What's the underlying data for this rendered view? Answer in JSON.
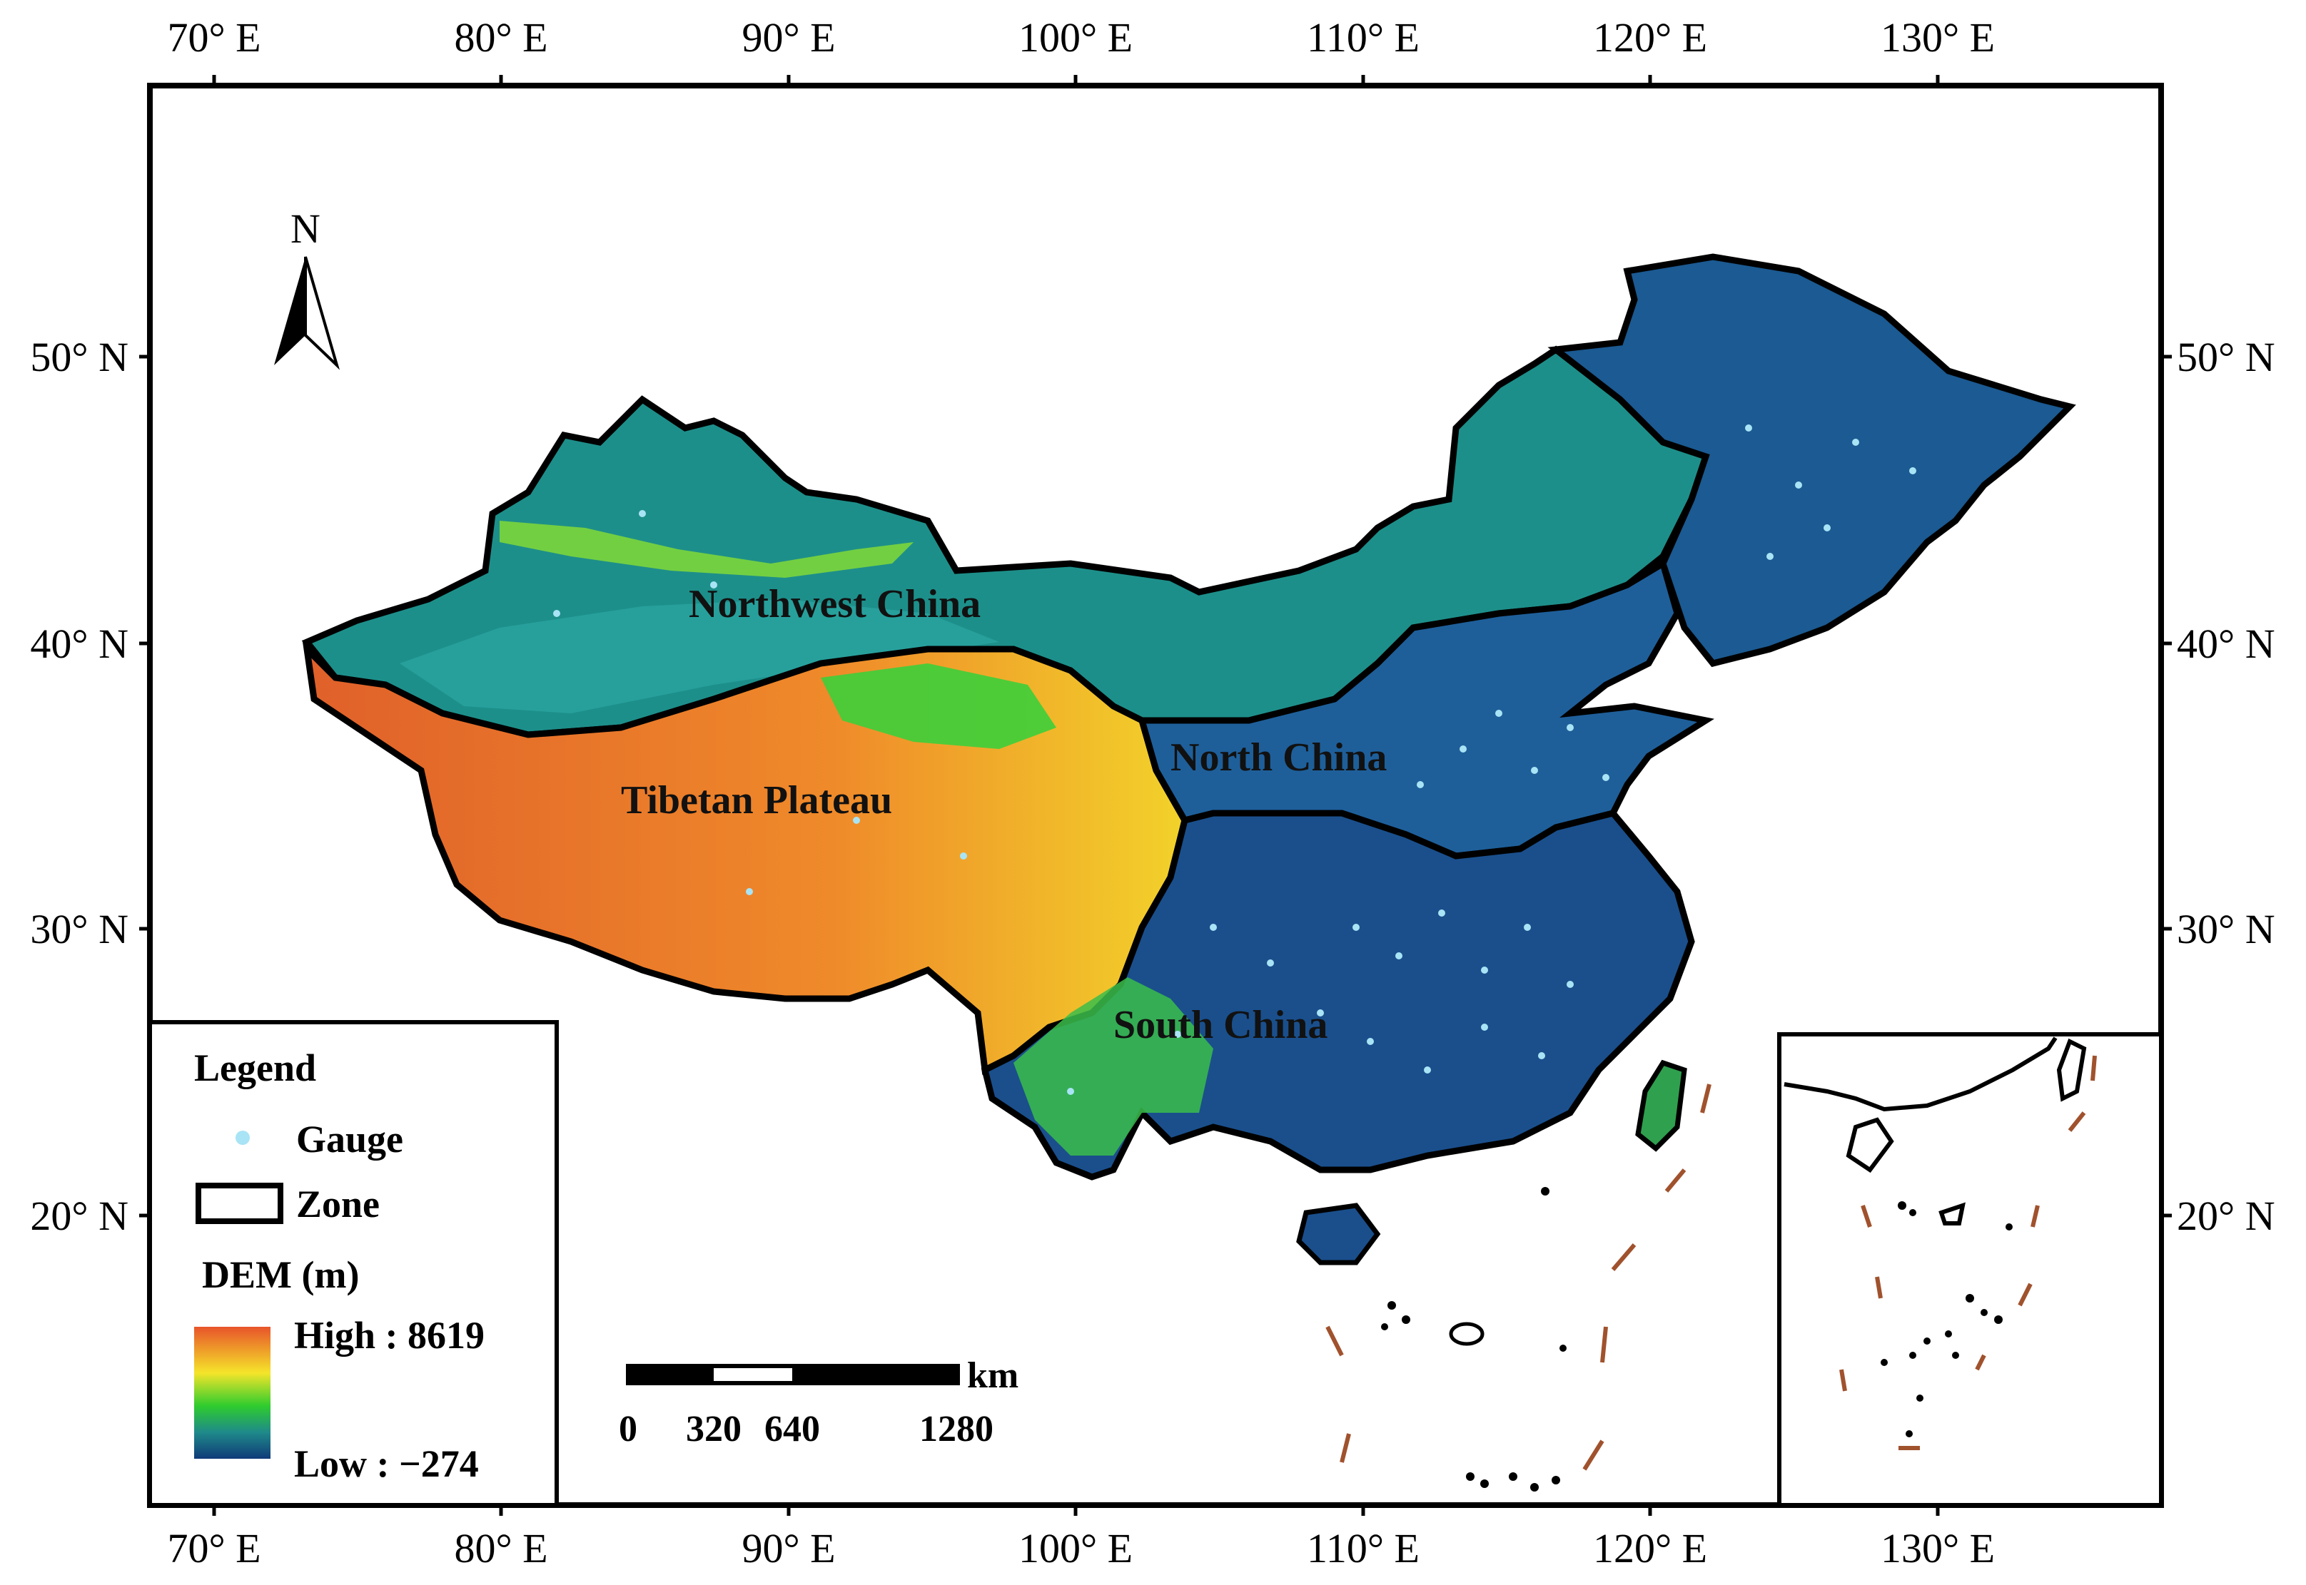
{
  "map": {
    "x_ticks": [
      "70° E",
      "80° E",
      "90° E",
      "100° E",
      "110° E",
      "120° E",
      "130° E"
    ],
    "y_ticks": [
      "50° N",
      "40° N",
      "30° N",
      "20° N"
    ],
    "north_label": "N",
    "regions": {
      "northwest": "Northwest China",
      "tibetan": "Tibetan Plateau",
      "north": "North China",
      "south": "South China"
    },
    "legend": {
      "title": "Legend",
      "gauge": "Gauge",
      "zone": "Zone",
      "dem_title": "DEM (m)",
      "high": "High : 8619",
      "low": "Low : −274"
    },
    "scale_bar": {
      "unit": "km",
      "labels": [
        "0",
        "320",
        "640",
        "1280"
      ]
    },
    "colors": {
      "gauge": "#a8e4f5",
      "zone_border": "#000000",
      "dem_high": "#e8542a",
      "dem_mid": "#f5e52a",
      "dem_green": "#2ecc2e",
      "dem_low": "#0f3a78",
      "dashed_line": "#a0522d"
    }
  }
}
